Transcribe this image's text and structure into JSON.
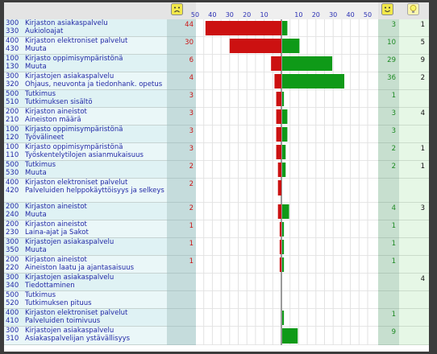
{
  "colors": {
    "negative": "#cc1111",
    "positive": "#0f9a18",
    "label": "#2229a6",
    "sad_face": "#f2e84a",
    "happy_face": "#f2e84a",
    "idea": "#f7f46a"
  },
  "header": {
    "sad_icon": "sad-face-icon",
    "happy_icon": "happy-face-icon",
    "idea_icon": "lightbulb-icon"
  },
  "chart_data": {
    "type": "bar",
    "layout": "diverging",
    "ticks_negative": [
      "50",
      "40",
      "30",
      "20",
      "10"
    ],
    "ticks_positive": [
      "10",
      "20",
      "30",
      "40",
      "50"
    ],
    "xlim": [
      -50,
      50
    ],
    "grid": true,
    "rows": [
      {
        "g_code": "300",
        "g_name": "Kirjaston asiakaspalvelu",
        "s_code": "330",
        "s_name": "Aukioloajat",
        "neg": 44,
        "pos": 3,
        "ideas": 1
      },
      {
        "g_code": "400",
        "g_name": "Kirjaston elektroniset palvelut",
        "s_code": "430",
        "s_name": "Muuta",
        "neg": 30,
        "pos": 10,
        "ideas": 5
      },
      {
        "g_code": "100",
        "g_name": "Kirjasto oppimisympäristönä",
        "s_code": "130",
        "s_name": "Muuta",
        "neg": 6,
        "pos": 29,
        "ideas": 9
      },
      {
        "g_code": "300",
        "g_name": "Kirjastojen asiakaspalvelu",
        "s_code": "320",
        "s_name": "Ohjaus, neuvonta ja tiedonhank. opetus",
        "neg": 4,
        "pos": 36,
        "ideas": 2
      },
      {
        "g_code": "500",
        "g_name": "Tutkimus",
        "s_code": "510",
        "s_name": "Tutkimuksen sisältö",
        "neg": 3,
        "pos": 1,
        "ideas": null
      },
      {
        "g_code": "200",
        "g_name": "Kirjaston aineistot",
        "s_code": "210",
        "s_name": "Aineiston määrä",
        "neg": 3,
        "pos": 3,
        "ideas": 4
      },
      {
        "g_code": "100",
        "g_name": "Kirjasto oppimisympäristönä",
        "s_code": "120",
        "s_name": "Työvälineet",
        "neg": 3,
        "pos": 3,
        "ideas": null
      },
      {
        "g_code": "100",
        "g_name": "Kirjasto oppimisympäristönä",
        "s_code": "110",
        "s_name": "Työskentelytilojen asianmukaisuus",
        "neg": 3,
        "pos": 2,
        "ideas": 1
      },
      {
        "g_code": "500",
        "g_name": "Tutkimus",
        "s_code": "530",
        "s_name": "Muuta",
        "neg": 2,
        "pos": 2,
        "ideas": 1
      },
      {
        "g_code": "400",
        "g_name": "Kirjaston elektroniset palvelut",
        "s_code": "420",
        "s_name": "Palveluiden helppokäyttöisyys ja selkeys",
        "neg": 2,
        "pos": null,
        "ideas": null
      },
      {
        "g_code": "200",
        "g_name": "Kirjaston aineistot",
        "s_code": "240",
        "s_name": "Muuta",
        "neg": 2,
        "pos": 4,
        "ideas": 3
      },
      {
        "g_code": "200",
        "g_name": "Kirjaston aineistot",
        "s_code": "230",
        "s_name": "Laina-ajat ja Sakot",
        "neg": 1,
        "pos": 1,
        "ideas": null
      },
      {
        "g_code": "300",
        "g_name": "Kirjastojen asiakaspalvelu",
        "s_code": "350",
        "s_name": "Muuta",
        "neg": 1,
        "pos": 1,
        "ideas": null
      },
      {
        "g_code": "200",
        "g_name": "Kirjaston aineistot",
        "s_code": "220",
        "s_name": "Aineiston laatu ja ajantasaisuus",
        "neg": 1,
        "pos": 1,
        "ideas": null
      },
      {
        "g_code": "300",
        "g_name": "Kirjastojen asiakaspalvelu",
        "s_code": "340",
        "s_name": "Tiedottaminen",
        "neg": null,
        "pos": null,
        "ideas": 4
      },
      {
        "g_code": "500",
        "g_name": "Tutkimus",
        "s_code": "520",
        "s_name": "Tutkimuksen pituus",
        "neg": null,
        "pos": null,
        "ideas": null
      },
      {
        "g_code": "400",
        "g_name": "Kirjaston elektroniset palvelut",
        "s_code": "410",
        "s_name": "Palveluiden toimivuus",
        "neg": null,
        "pos": 1,
        "ideas": null
      },
      {
        "g_code": "300",
        "g_name": "Kirjastojen asiakaspalvelu",
        "s_code": "310",
        "s_name": "Asiakaspalvelijan ystävällisyys",
        "neg": null,
        "pos": 9,
        "ideas": null
      }
    ]
  }
}
